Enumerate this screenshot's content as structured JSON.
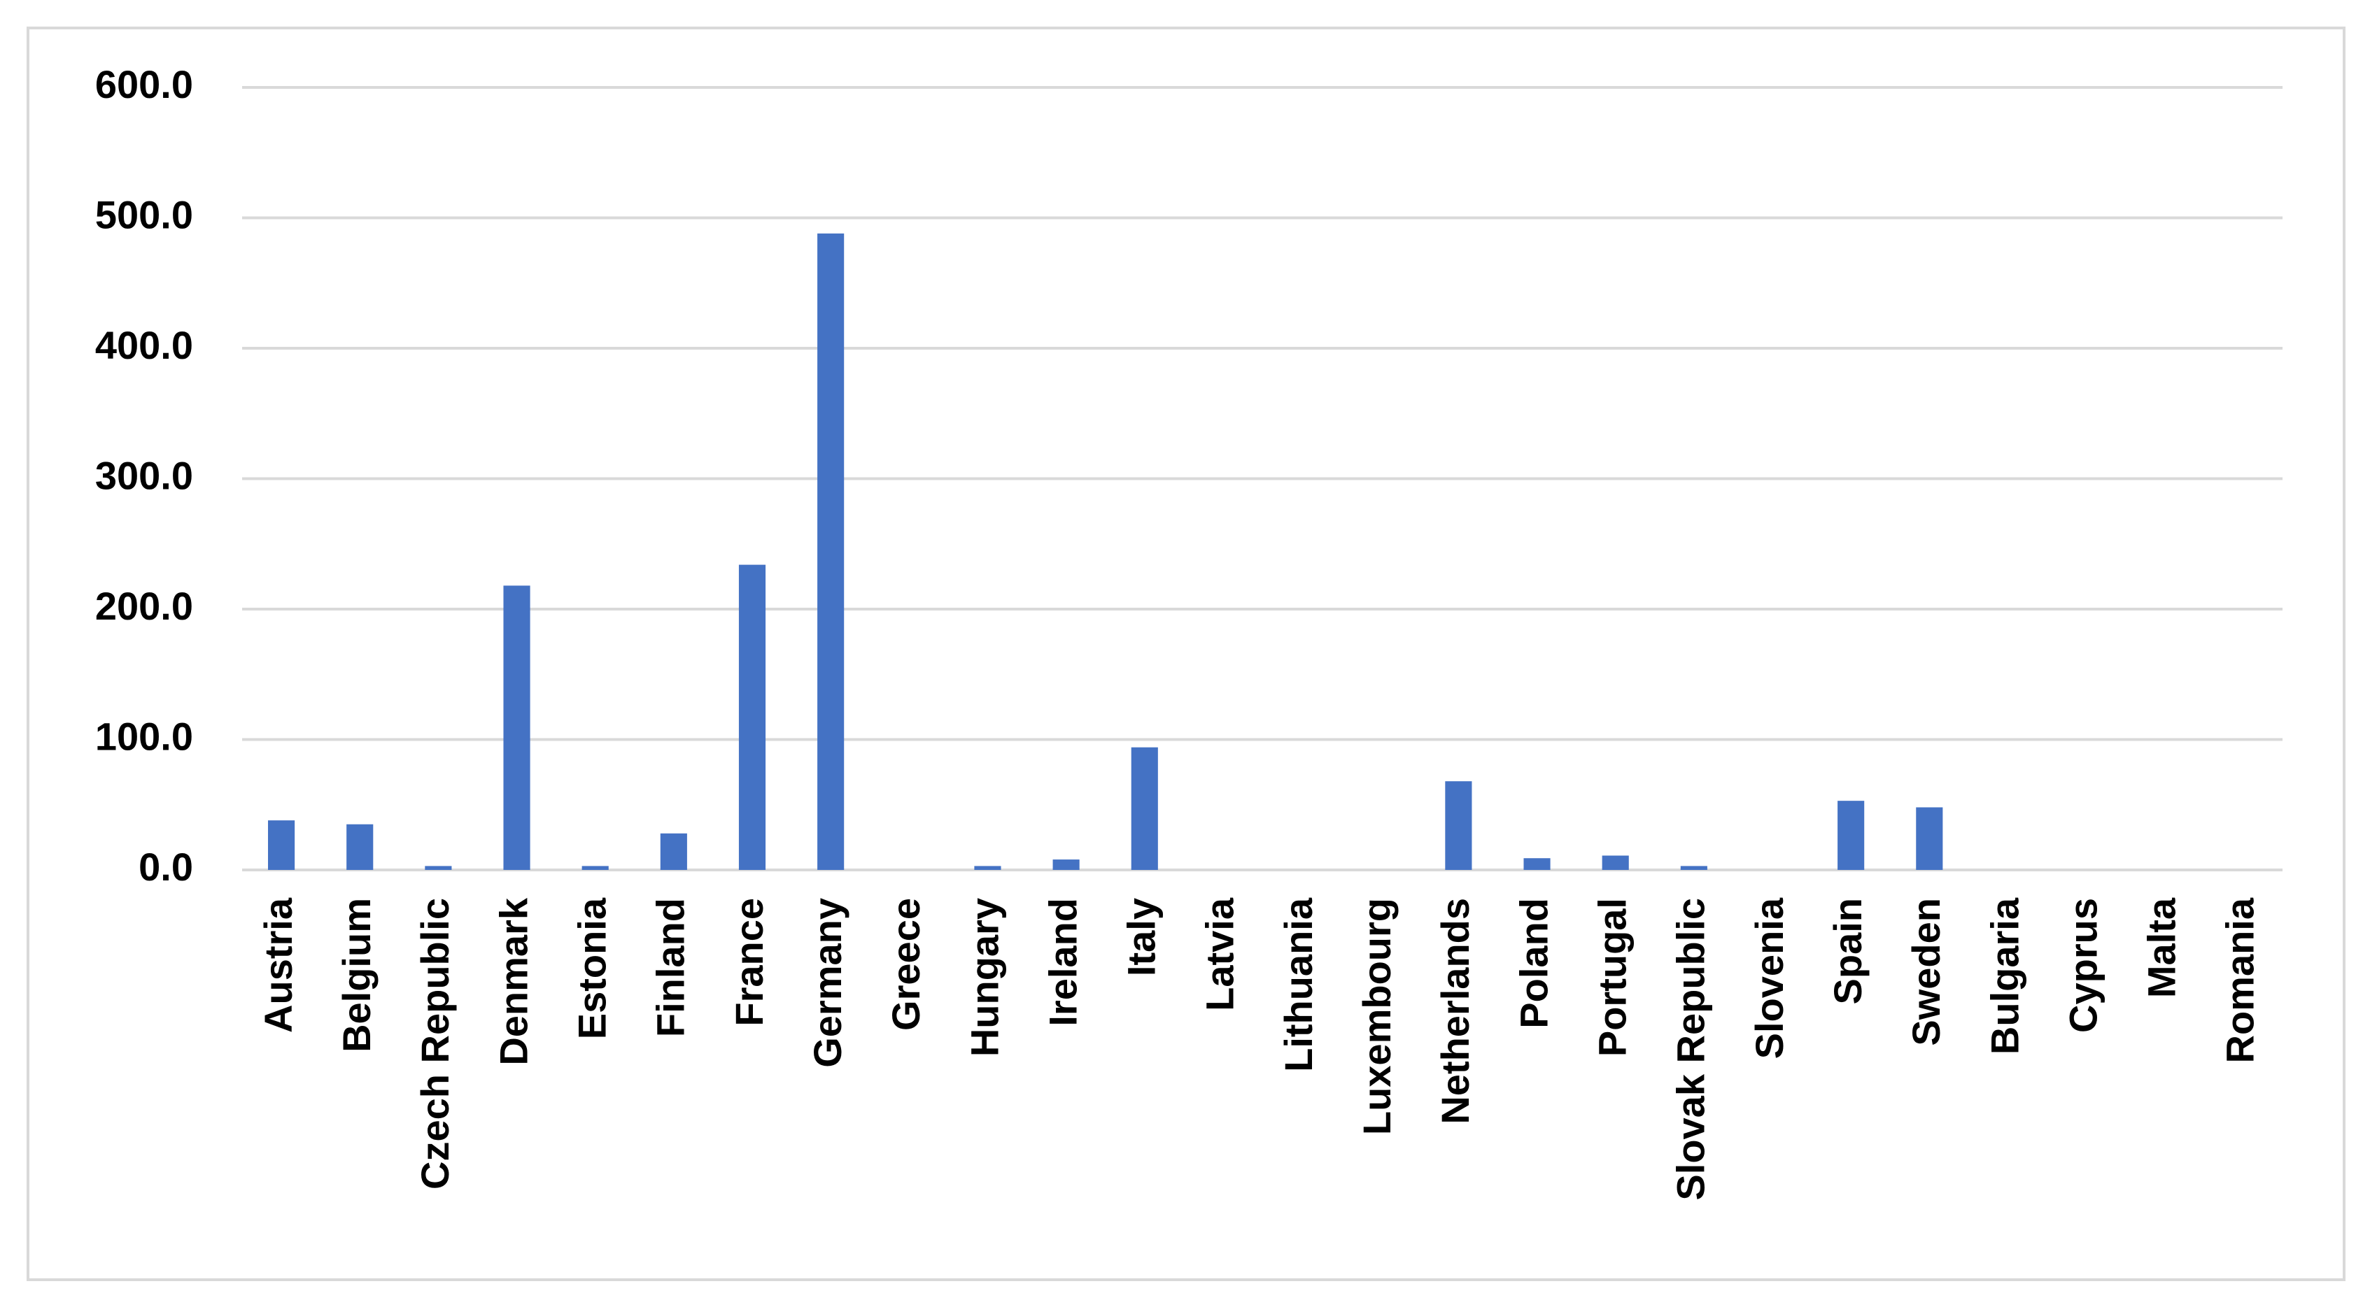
{
  "chart_data": {
    "type": "bar",
    "categories": [
      "Austria",
      "Belgium",
      "Czech Republic",
      "Denmark",
      "Estonia",
      "Finland",
      "France",
      "Germany",
      "Greece",
      "Hungary",
      "Ireland",
      "Italy",
      "Latvia",
      "Lithuania",
      "Luxembourg",
      "Netherlands",
      "Poland",
      "Portugal",
      "Slovak Republic",
      "Slovenia",
      "Spain",
      "Sweden",
      "Bulgaria",
      "Cyprus",
      "Malta",
      "Romania"
    ],
    "values": [
      38,
      35,
      3,
      218,
      3,
      28,
      234,
      488,
      0,
      3,
      8,
      94,
      0,
      0,
      0,
      68,
      9,
      11,
      3,
      0,
      53,
      48,
      0,
      0,
      0,
      0
    ],
    "color": "#4472c4",
    "ylim": [
      0,
      600
    ],
    "yticks": [
      {
        "value": 0,
        "label": "0.0"
      },
      {
        "value": 100,
        "label": "100.0"
      },
      {
        "value": 200,
        "label": "200.0"
      },
      {
        "value": 300,
        "label": "300.0"
      },
      {
        "value": 400,
        "label": "400.0"
      },
      {
        "value": 500,
        "label": "500.0"
      },
      {
        "value": 600,
        "label": "600.0"
      }
    ],
    "grid": true
  }
}
